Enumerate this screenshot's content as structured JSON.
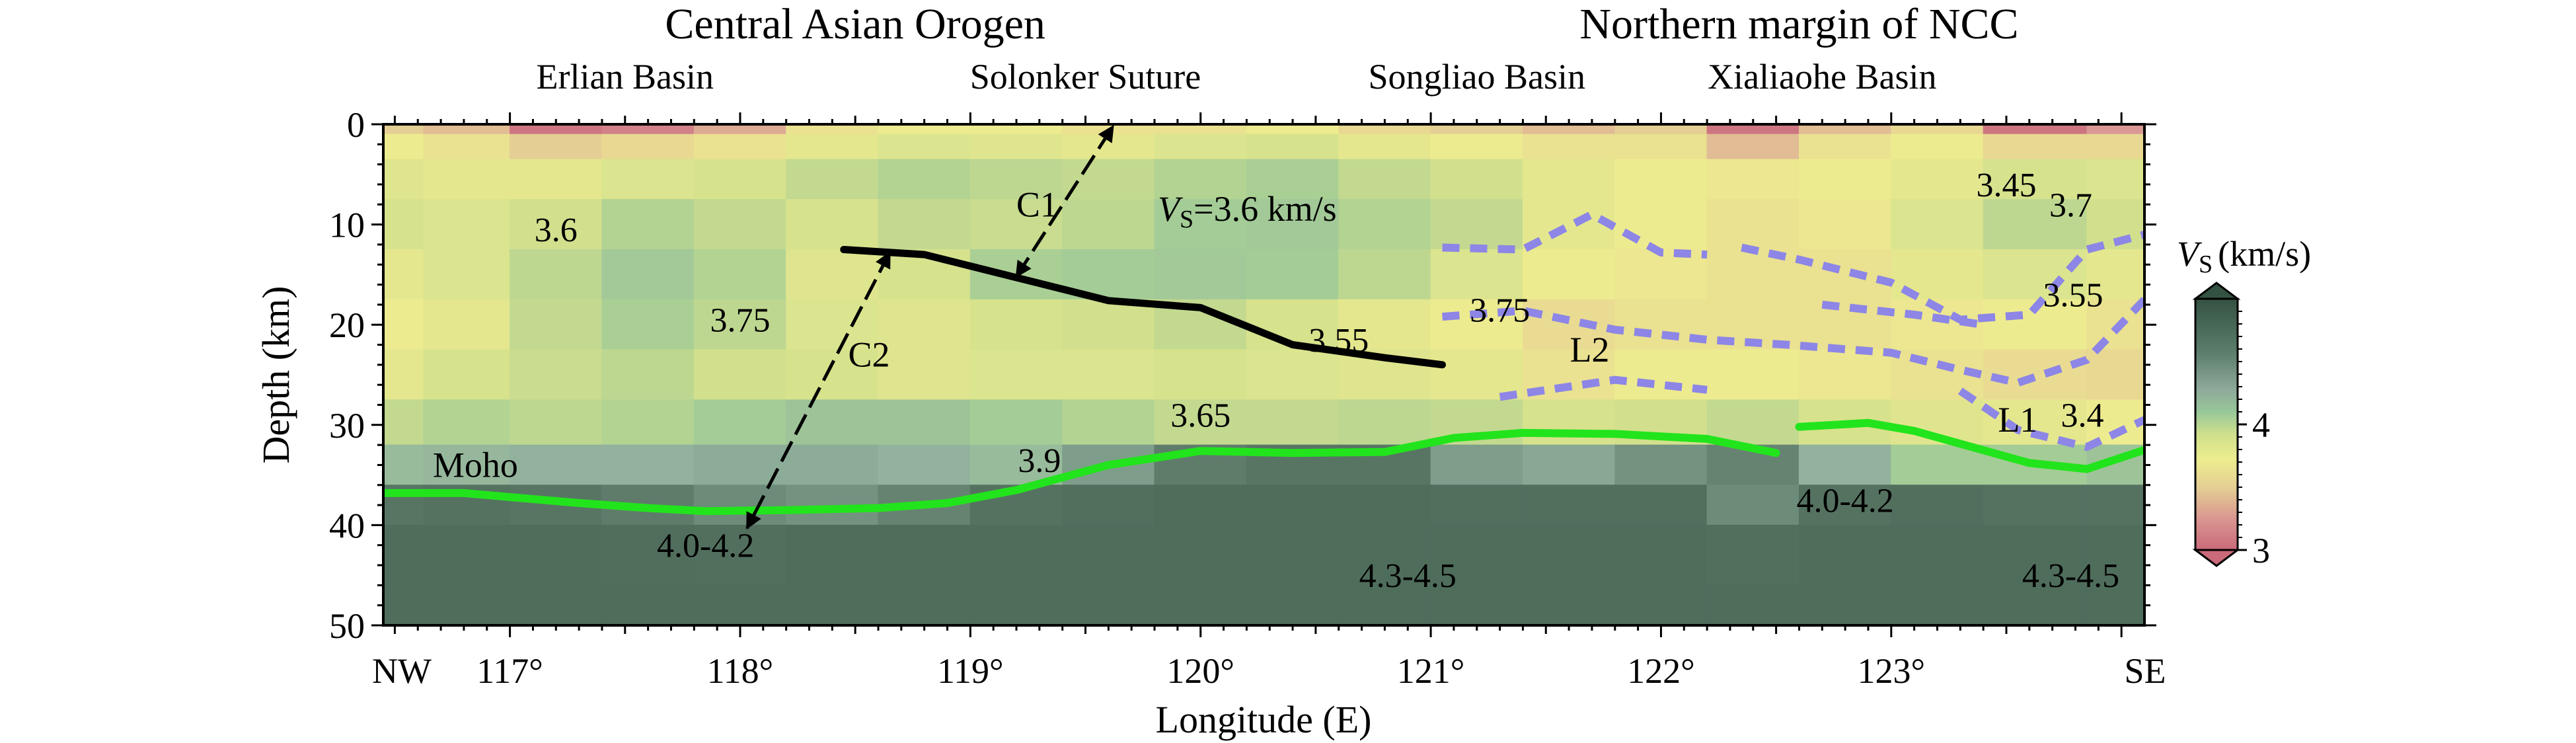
{
  "chart_data": {
    "type": "heatmap",
    "title": "",
    "xlabel": "Longitude (E)",
    "ylabel": "Depth (km)",
    "xlim": [
      116.45,
      124.1
    ],
    "ylim": [
      0,
      50
    ],
    "x_ticks": [
      {
        "value": 117,
        "label": "117°"
      },
      {
        "value": 118,
        "label": "118°"
      },
      {
        "value": 119,
        "label": "119°"
      },
      {
        "value": 120,
        "label": "120°"
      },
      {
        "value": 121,
        "label": "121°"
      },
      {
        "value": 122,
        "label": "122°"
      },
      {
        "value": 123,
        "label": "123°"
      }
    ],
    "y_ticks": [
      {
        "value": 0,
        "label": "0"
      },
      {
        "value": 10,
        "label": "10"
      },
      {
        "value": 20,
        "label": "20"
      },
      {
        "value": 30,
        "label": "30"
      },
      {
        "value": 40,
        "label": "40"
      },
      {
        "value": 50,
        "label": "50"
      }
    ],
    "profile_ends": {
      "left": "NW",
      "right": "SE"
    },
    "regions": [
      {
        "label": "Central Asian Orogen",
        "x": 118.5
      },
      {
        "label": "Northern margin of NCC",
        "x": 122.6
      }
    ],
    "features": [
      {
        "label": "Erlian Basin",
        "x": 117.5
      },
      {
        "label": "Solonker Suture",
        "x": 119.5
      },
      {
        "label": "Songliao Basin",
        "x": 121.2
      },
      {
        "label": "Xialiaohe Basin",
        "x": 122.7
      }
    ],
    "colorbar": {
      "title_v": "V",
      "title_sub": "S",
      "title_unit": "(km/s)",
      "min": 3,
      "max": 5,
      "ticks": [
        {
          "value": 3,
          "label": "3"
        },
        {
          "value": 4,
          "label": "4"
        }
      ]
    },
    "vs_labels": [
      {
        "text": "3.6",
        "x": 117.2,
        "y": 10.5
      },
      {
        "text": "3.75",
        "x": 118.0,
        "y": 19.5
      },
      {
        "text": "3.65",
        "x": 120.0,
        "y": 29.0
      },
      {
        "text": "3.9",
        "x": 119.3,
        "y": 33.5
      },
      {
        "text": "4.0-4.2",
        "x": 117.85,
        "y": 42.0
      },
      {
        "text": "3.55",
        "x": 120.6,
        "y": 21.5
      },
      {
        "text": "3.75",
        "x": 121.3,
        "y": 18.5
      },
      {
        "text": "4.3-4.5",
        "x": 120.9,
        "y": 45.0
      },
      {
        "text": "4.0-4.2",
        "x": 122.8,
        "y": 37.5
      },
      {
        "text": "3.45",
        "x": 123.5,
        "y": 6.0
      },
      {
        "text": "3.7",
        "x": 123.78,
        "y": 8.0
      },
      {
        "text": "3.55",
        "x": 123.79,
        "y": 17.0
      },
      {
        "text": "3.4",
        "x": 123.83,
        "y": 29.0
      },
      {
        "text": "4.3-4.5",
        "x": 123.78,
        "y": 45.0
      }
    ],
    "vs_annotation": {
      "v": "V",
      "sub": "S",
      "rest": "=3.6 km/s",
      "x": 120.3,
      "y": 9.0
    },
    "annotations": [
      {
        "text": "C1",
        "x": 119.29,
        "y": 8.0
      },
      {
        "text": "C2",
        "x": 118.56,
        "y": 23.0
      },
      {
        "text": "L2",
        "x": 121.69,
        "y": 22.5
      },
      {
        "text": "L1",
        "x": 123.55,
        "y": 29.5
      },
      {
        "text": "Moho",
        "x": 116.85,
        "y": 34.0
      }
    ],
    "moho": [
      [
        [
          116.45,
          36.8
        ],
        [
          116.8,
          36.8
        ],
        [
          117.0,
          37.2
        ],
        [
          117.3,
          37.8
        ],
        [
          117.6,
          38.3
        ],
        [
          117.85,
          38.6
        ],
        [
          118.2,
          38.5
        ],
        [
          118.6,
          38.3
        ],
        [
          118.9,
          37.8
        ],
        [
          119.2,
          36.5
        ],
        [
          119.6,
          34.0
        ],
        [
          120.0,
          32.6
        ],
        [
          120.4,
          32.8
        ],
        [
          120.8,
          32.7
        ],
        [
          121.1,
          31.3
        ],
        [
          121.4,
          30.8
        ],
        [
          121.8,
          30.9
        ],
        [
          122.2,
          31.4
        ],
        [
          122.5,
          32.8
        ]
      ],
      [
        [
          122.6,
          30.2
        ],
        [
          122.9,
          29.8
        ],
        [
          123.1,
          30.6
        ],
        [
          123.35,
          32.2
        ],
        [
          123.6,
          33.8
        ],
        [
          123.85,
          34.4
        ],
        [
          124.1,
          32.5
        ]
      ]
    ],
    "interfaces": [
      [
        [
          118.45,
          12.5
        ],
        [
          118.8,
          13.0
        ],
        [
          119.2,
          15.3
        ],
        [
          119.6,
          17.6
        ],
        [
          120.0,
          18.3
        ],
        [
          120.4,
          22.0
        ],
        [
          120.8,
          23.3
        ],
        [
          121.05,
          24.0
        ]
      ]
    ],
    "low_velocity_zones": [
      [
        [
          121.05,
          12.3
        ],
        [
          121.4,
          12.5
        ],
        [
          121.7,
          9.0
        ],
        [
          122.0,
          12.8
        ],
        [
          122.2,
          13.0
        ]
      ],
      [
        [
          121.05,
          19.2
        ],
        [
          121.4,
          18.6
        ],
        [
          121.8,
          20.5
        ],
        [
          122.2,
          21.5
        ],
        [
          122.55,
          22.0
        ],
        [
          123.0,
          22.8
        ],
        [
          123.3,
          24.5
        ],
        [
          123.55,
          25.8
        ],
        [
          123.85,
          23.5
        ],
        [
          124.1,
          17.5
        ]
      ],
      [
        [
          121.3,
          27.2
        ],
        [
          121.8,
          25.5
        ],
        [
          122.2,
          26.5
        ]
      ],
      [
        [
          122.35,
          12.3
        ],
        [
          122.6,
          13.5
        ],
        [
          123.0,
          15.8
        ],
        [
          123.3,
          19.5
        ],
        [
          123.6,
          19.0
        ],
        [
          123.85,
          12.5
        ],
        [
          124.1,
          11.0
        ]
      ],
      [
        [
          122.7,
          18.0
        ],
        [
          123.1,
          19.0
        ],
        [
          123.4,
          20.0
        ]
      ],
      [
        [
          123.3,
          26.6
        ],
        [
          123.55,
          30.5
        ],
        [
          123.85,
          32.2
        ],
        [
          124.1,
          29.5
        ]
      ]
    ],
    "arrows": [
      {
        "name": "C1",
        "from": [
          119.2,
          15.2
        ],
        "to": [
          119.62,
          0.2
        ]
      },
      {
        "name": "C2",
        "from": [
          118.65,
          12.8
        ],
        "to": [
          118.03,
          40.3
        ]
      }
    ],
    "velocity_model": {
      "x": [
        116.45,
        116.8,
        117.2,
        117.6,
        118.0,
        118.4,
        118.8,
        119.2,
        119.6,
        120.0,
        120.4,
        120.8,
        121.2,
        121.6,
        122.0,
        122.4,
        122.8,
        123.2,
        123.6,
        124.1
      ],
      "depth": [
        0,
        2,
        5,
        10,
        15,
        20,
        25,
        30,
        34,
        38,
        42,
        50
      ],
      "vs": [
        [
          3.35,
          3.3,
          3.05,
          3.1,
          3.25,
          3.45,
          3.5,
          3.5,
          3.45,
          3.45,
          3.5,
          3.4,
          3.35,
          3.3,
          3.35,
          3.05,
          3.3,
          3.4,
          3.05,
          3.2
        ],
        [
          3.5,
          3.45,
          3.35,
          3.4,
          3.45,
          3.55,
          3.6,
          3.58,
          3.55,
          3.6,
          3.62,
          3.55,
          3.5,
          3.45,
          3.45,
          3.3,
          3.45,
          3.5,
          3.4,
          3.4
        ],
        [
          3.58,
          3.55,
          3.55,
          3.6,
          3.62,
          3.7,
          3.75,
          3.72,
          3.7,
          3.75,
          3.78,
          3.7,
          3.65,
          3.55,
          3.5,
          3.48,
          3.5,
          3.55,
          3.62,
          3.6
        ],
        [
          3.62,
          3.6,
          3.65,
          3.75,
          3.7,
          3.62,
          3.7,
          3.68,
          3.72,
          3.8,
          3.82,
          3.75,
          3.7,
          3.55,
          3.5,
          3.45,
          3.48,
          3.6,
          3.72,
          3.65
        ],
        [
          3.55,
          3.6,
          3.72,
          3.82,
          3.75,
          3.58,
          3.62,
          3.78,
          3.8,
          3.82,
          3.8,
          3.72,
          3.6,
          3.5,
          3.48,
          3.45,
          3.45,
          3.55,
          3.6,
          3.55
        ],
        [
          3.5,
          3.55,
          3.7,
          3.78,
          3.72,
          3.6,
          3.58,
          3.62,
          3.65,
          3.7,
          3.62,
          3.55,
          3.5,
          3.42,
          3.45,
          3.45,
          3.45,
          3.48,
          3.5,
          3.45
        ],
        [
          3.55,
          3.62,
          3.68,
          3.72,
          3.65,
          3.62,
          3.58,
          3.6,
          3.6,
          3.62,
          3.6,
          3.58,
          3.55,
          3.45,
          3.5,
          3.5,
          3.48,
          3.45,
          3.42,
          3.4
        ],
        [
          3.7,
          3.75,
          3.72,
          3.75,
          3.8,
          3.85,
          3.85,
          3.8,
          3.75,
          3.7,
          3.7,
          3.72,
          3.7,
          3.62,
          3.65,
          3.7,
          3.62,
          3.58,
          3.55,
          3.5
        ],
        [
          3.9,
          3.92,
          3.95,
          3.95,
          3.98,
          3.98,
          3.95,
          3.9,
          4.05,
          4.25,
          4.3,
          4.3,
          4.05,
          4.0,
          4.1,
          4.2,
          3.95,
          3.8,
          3.8,
          3.85
        ],
        [
          4.3,
          4.35,
          4.3,
          4.25,
          4.15,
          4.1,
          4.2,
          4.35,
          4.4,
          4.45,
          4.45,
          4.45,
          4.4,
          4.4,
          4.4,
          4.15,
          4.35,
          4.4,
          4.35,
          4.35
        ],
        [
          4.45,
          4.45,
          4.45,
          4.42,
          4.4,
          4.45,
          4.45,
          4.45,
          4.45,
          4.45,
          4.45,
          4.45,
          4.45,
          4.45,
          4.45,
          4.4,
          4.45,
          4.45,
          4.45,
          4.45
        ],
        [
          4.45,
          4.45,
          4.45,
          4.45,
          4.45,
          4.45,
          4.45,
          4.45,
          4.45,
          4.45,
          4.45,
          4.45,
          4.45,
          4.45,
          4.45,
          4.45,
          4.45,
          4.45,
          4.45,
          4.45
        ]
      ]
    }
  }
}
